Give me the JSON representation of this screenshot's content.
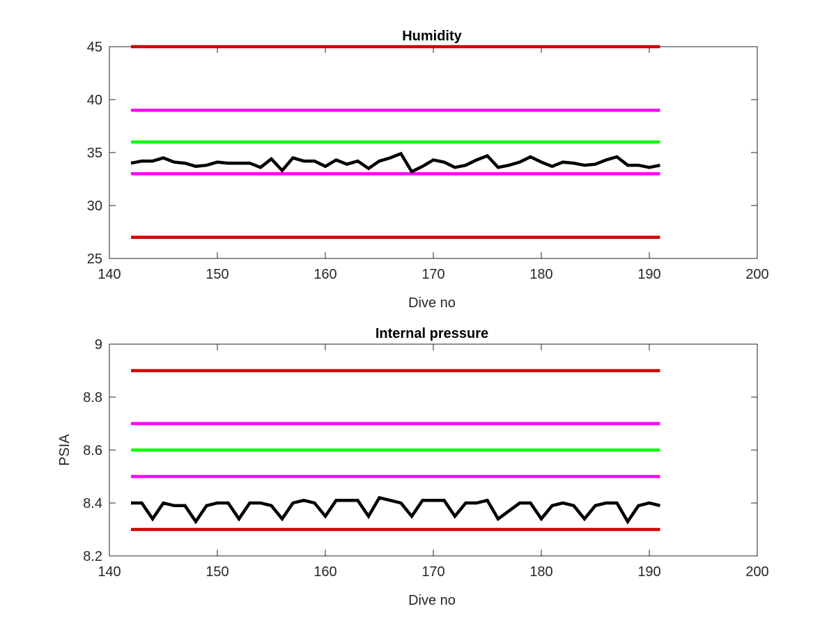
{
  "colors": {
    "red": "#d40000",
    "magenta": "#ff00ff",
    "green": "#00ff00",
    "black": "#000000",
    "axis": "#262626"
  },
  "chart_data": [
    {
      "type": "line",
      "title": "Humidity",
      "xlabel": "Dive no",
      "ylabel": "",
      "xlim": [
        140,
        200
      ],
      "ylim": [
        25,
        45
      ],
      "x_ticks": [
        "140",
        "150",
        "160",
        "170",
        "180",
        "190",
        "200"
      ],
      "y_ticks": [
        "25",
        "30",
        "35",
        "40",
        "45"
      ],
      "grid": false,
      "thresholds": [
        {
          "value": 45,
          "color": "red",
          "x": [
            142,
            191
          ]
        },
        {
          "value": 39,
          "color": "magenta",
          "x": [
            142,
            191
          ]
        },
        {
          "value": 36,
          "color": "green",
          "x": [
            142,
            191
          ]
        },
        {
          "value": 33,
          "color": "magenta",
          "x": [
            142,
            191
          ]
        },
        {
          "value": 27,
          "color": "red",
          "x": [
            142,
            191
          ]
        }
      ],
      "series": [
        {
          "color": "black",
          "x": [
            142,
            143,
            144,
            145,
            146,
            147,
            148,
            149,
            150,
            151,
            152,
            153,
            154,
            155,
            156,
            157,
            158,
            159,
            160,
            161,
            162,
            163,
            164,
            165,
            166,
            167,
            168,
            169,
            170,
            171,
            172,
            173,
            174,
            175,
            176,
            177,
            178,
            179,
            180,
            181,
            182,
            183,
            184,
            185,
            186,
            187,
            188,
            189,
            190,
            191
          ],
          "values": [
            34.0,
            34.2,
            34.2,
            34.5,
            34.1,
            34.0,
            33.7,
            33.8,
            34.1,
            34.0,
            34.0,
            34.0,
            33.6,
            34.4,
            33.3,
            34.5,
            34.2,
            34.2,
            33.7,
            34.3,
            33.9,
            34.2,
            33.5,
            34.2,
            34.5,
            34.9,
            33.2,
            33.7,
            34.3,
            34.1,
            33.6,
            33.8,
            34.3,
            34.7,
            33.6,
            33.8,
            34.1,
            34.6,
            34.1,
            33.7,
            34.1,
            34.0,
            33.8,
            33.9,
            34.3,
            34.6,
            33.8,
            33.8,
            33.6,
            33.8
          ]
        }
      ]
    },
    {
      "type": "line",
      "title": "Internal pressure",
      "xlabel": "Dive no",
      "ylabel": "PSIA",
      "xlim": [
        140,
        200
      ],
      "ylim": [
        8.2,
        9.0
      ],
      "x_ticks": [
        "140",
        "150",
        "160",
        "170",
        "180",
        "190",
        "200"
      ],
      "y_ticks": [
        "8.2",
        "8.4",
        "8.6",
        "8.8",
        "9"
      ],
      "grid": false,
      "thresholds": [
        {
          "value": 8.9,
          "color": "red",
          "x": [
            142,
            191
          ]
        },
        {
          "value": 8.7,
          "color": "magenta",
          "x": [
            142,
            191
          ]
        },
        {
          "value": 8.6,
          "color": "green",
          "x": [
            142,
            191
          ]
        },
        {
          "value": 8.5,
          "color": "magenta",
          "x": [
            142,
            191
          ]
        },
        {
          "value": 8.3,
          "color": "red",
          "x": [
            142,
            191
          ]
        }
      ],
      "series": [
        {
          "color": "black",
          "x": [
            142,
            143,
            144,
            145,
            146,
            147,
            148,
            149,
            150,
            151,
            152,
            153,
            154,
            155,
            156,
            157,
            158,
            159,
            160,
            161,
            162,
            163,
            164,
            165,
            166,
            167,
            168,
            169,
            170,
            171,
            172,
            173,
            174,
            175,
            176,
            177,
            178,
            179,
            180,
            181,
            182,
            183,
            184,
            185,
            186,
            187,
            188,
            189,
            190,
            191
          ],
          "values": [
            8.4,
            8.4,
            8.34,
            8.4,
            8.39,
            8.39,
            8.33,
            8.39,
            8.4,
            8.4,
            8.34,
            8.4,
            8.4,
            8.39,
            8.34,
            8.4,
            8.41,
            8.4,
            8.35,
            8.41,
            8.41,
            8.41,
            8.35,
            8.42,
            8.41,
            8.4,
            8.35,
            8.41,
            8.41,
            8.41,
            8.35,
            8.4,
            8.4,
            8.41,
            8.34,
            8.37,
            8.4,
            8.4,
            8.34,
            8.39,
            8.4,
            8.39,
            8.34,
            8.39,
            8.4,
            8.4,
            8.33,
            8.39,
            8.4,
            8.39
          ]
        }
      ]
    }
  ]
}
